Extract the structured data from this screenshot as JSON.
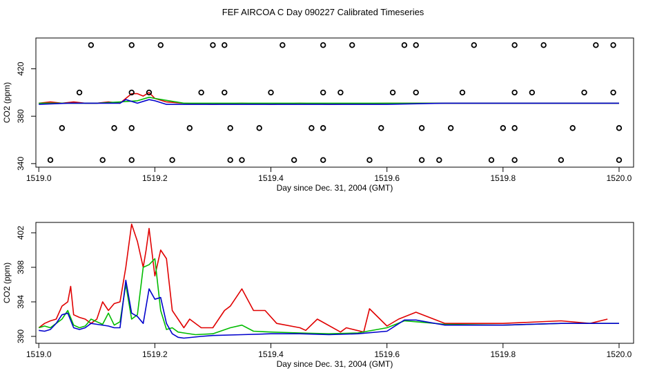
{
  "title": "FEF AIRCOA C  Day 090227  Calibrated Timeseries",
  "colors": {
    "red": "#e00000",
    "green": "#00bb00",
    "blue": "#0000cc",
    "marker": "#000000"
  },
  "chart_data": [
    {
      "type": "line",
      "xlabel": "Day since Dec. 31, 2004 (GMT)",
      "ylabel": "CO2 (ppm)",
      "xlim": [
        1518.995,
        1520.025
      ],
      "ylim": [
        337,
        446
      ],
      "xticks": [
        "1519.0",
        "1519.2",
        "1519.4",
        "1519.6",
        "1519.8",
        "1520.0"
      ],
      "yticks": [
        "340",
        "380",
        "420"
      ],
      "series": [
        {
          "color": "red",
          "x": [
            1519.0,
            1519.02,
            1519.04,
            1519.06,
            1519.08,
            1519.1,
            1519.12,
            1519.14,
            1519.15,
            1519.16,
            1519.17,
            1519.18,
            1519.19,
            1519.2,
            1519.22,
            1519.25,
            1519.3,
            1519.35,
            1519.4,
            1519.45,
            1519.5,
            1519.6,
            1519.7,
            1519.8,
            1519.9,
            1520.0
          ],
          "y": [
            391,
            392,
            391,
            392,
            391,
            391,
            392,
            391,
            395,
            399,
            399,
            397,
            400,
            395,
            392,
            391,
            390,
            391,
            390,
            391,
            390,
            391,
            391,
            391,
            391,
            391
          ]
        },
        {
          "color": "green",
          "x": [
            1519.0,
            1519.05,
            1519.1,
            1519.14,
            1519.17,
            1519.19,
            1519.2,
            1519.25,
            1519.3,
            1519.4,
            1519.5,
            1519.6,
            1519.7,
            1519.8,
            1519.9,
            1520.0
          ],
          "y": [
            391,
            391,
            391,
            392,
            393,
            396,
            395,
            391,
            391,
            391,
            391,
            391,
            391,
            391,
            391,
            391
          ]
        },
        {
          "color": "blue",
          "x": [
            1519.0,
            1519.05,
            1519.1,
            1519.14,
            1519.15,
            1519.17,
            1519.19,
            1519.2,
            1519.22,
            1519.3,
            1519.4,
            1519.5,
            1519.6,
            1519.7,
            1519.8,
            1519.9,
            1520.0
          ],
          "y": [
            390,
            391,
            391,
            391,
            394,
            391,
            394,
            393,
            390,
            390,
            390,
            390,
            390,
            391,
            391,
            391,
            391
          ]
        },
        {
          "type": "scatter",
          "color": "marker",
          "name": "",
          "x": [
            1519.09,
            1519.16,
            1519.21,
            1519.3,
            1519.32,
            1519.42,
            1519.49,
            1519.54,
            1519.63,
            1519.65,
            1519.75,
            1519.82,
            1519.87,
            1519.96,
            1519.99,
            1519.07,
            1519.16,
            1519.19,
            1519.28,
            1519.32,
            1519.4,
            1519.49,
            1519.52,
            1519.61,
            1519.65,
            1519.73,
            1519.82,
            1519.85,
            1519.94,
            1519.99,
            1519.04,
            1519.13,
            1519.16,
            1519.26,
            1519.33,
            1519.38,
            1519.47,
            1519.49,
            1519.59,
            1519.66,
            1519.71,
            1519.8,
            1519.82,
            1519.92,
            1520.0,
            1519.02,
            1519.11,
            1519.16,
            1519.23,
            1519.33,
            1519.35,
            1519.44,
            1519.49,
            1519.57,
            1519.66,
            1519.69,
            1519.78,
            1519.82,
            1519.9,
            1520.0
          ],
          "y": [
            440,
            440,
            440,
            440,
            440,
            440,
            440,
            440,
            440,
            440,
            440,
            440,
            440,
            440,
            440,
            400,
            400,
            400,
            400,
            400,
            400,
            400,
            400,
            400,
            400,
            400,
            400,
            400,
            400,
            400,
            370,
            370,
            370,
            370,
            370,
            370,
            370,
            370,
            370,
            370,
            370,
            370,
            370,
            370,
            370,
            343,
            343,
            343,
            343,
            343,
            343,
            343,
            343,
            343,
            343,
            343,
            343,
            343,
            343,
            343
          ]
        }
      ]
    },
    {
      "type": "line",
      "xlabel": "Day since Dec. 31, 2004 (GMT)",
      "ylabel": "CO2 (ppm)",
      "xlim": [
        1518.995,
        1520.025
      ],
      "ylim": [
        389.2,
        403.2
      ],
      "xticks": [
        "1519.0",
        "1519.2",
        "1519.4",
        "1519.6",
        "1519.8",
        "1520.0"
      ],
      "yticks": [
        "390",
        "394",
        "398",
        "402"
      ],
      "series": [
        {
          "color": "red",
          "x": [
            1519.0,
            1519.01,
            1519.02,
            1519.03,
            1519.04,
            1519.05,
            1519.055,
            1519.06,
            1519.07,
            1519.08,
            1519.09,
            1519.1,
            1519.11,
            1519.12,
            1519.13,
            1519.14,
            1519.15,
            1519.16,
            1519.17,
            1519.18,
            1519.185,
            1519.19,
            1519.2,
            1519.21,
            1519.22,
            1519.23,
            1519.24,
            1519.25,
            1519.26,
            1519.28,
            1519.3,
            1519.32,
            1519.33,
            1519.35,
            1519.37,
            1519.39,
            1519.41,
            1519.45,
            1519.46,
            1519.48,
            1519.52,
            1519.53,
            1519.56,
            1519.57,
            1519.6,
            1519.62,
            1519.65,
            1519.7,
            1519.8,
            1519.9,
            1519.95,
            1519.98
          ],
          "y": [
            391,
            391.5,
            391.8,
            392,
            393.5,
            394,
            395.8,
            392.5,
            392.2,
            392,
            391.5,
            392,
            394,
            393,
            393.8,
            394,
            398,
            403,
            401,
            398,
            400,
            402.5,
            397,
            400,
            399,
            393,
            392,
            391,
            392,
            391,
            391,
            393,
            393.5,
            395.5,
            393,
            393,
            391.5,
            391,
            390.7,
            392,
            390.5,
            391,
            390.5,
            393.2,
            391.2,
            392,
            392.8,
            391.5,
            391.5,
            391.8,
            391.5,
            392
          ]
        },
        {
          "color": "green",
          "x": [
            1519.0,
            1519.01,
            1519.02,
            1519.03,
            1519.04,
            1519.05,
            1519.06,
            1519.07,
            1519.08,
            1519.09,
            1519.1,
            1519.11,
            1519.12,
            1519.13,
            1519.14,
            1519.15,
            1519.16,
            1519.17,
            1519.18,
            1519.19,
            1519.2,
            1519.21,
            1519.22,
            1519.23,
            1519.24,
            1519.25,
            1519.27,
            1519.3,
            1519.33,
            1519.35,
            1519.37,
            1519.4,
            1519.45,
            1519.5,
            1519.55,
            1519.6,
            1519.63,
            1519.65,
            1519.7,
            1519.8,
            1519.9,
            1519.95,
            1520.0
          ],
          "y": [
            391,
            391.2,
            391,
            391.5,
            392,
            393,
            391.3,
            391,
            391.2,
            392,
            391.7,
            391.4,
            392.7,
            391.3,
            391.7,
            396,
            392,
            392.5,
            398,
            398.3,
            399,
            393,
            390.8,
            391,
            390.5,
            390.4,
            390.2,
            390.3,
            391,
            391.3,
            390.6,
            390.5,
            390.4,
            390.3,
            390.4,
            391,
            391.8,
            391.7,
            391.4,
            391.3,
            391.5,
            391.5,
            391.5
          ]
        },
        {
          "color": "blue",
          "x": [
            1519.0,
            1519.01,
            1519.02,
            1519.03,
            1519.04,
            1519.05,
            1519.06,
            1519.07,
            1519.08,
            1519.09,
            1519.1,
            1519.12,
            1519.13,
            1519.14,
            1519.15,
            1519.16,
            1519.17,
            1519.18,
            1519.19,
            1519.2,
            1519.21,
            1519.22,
            1519.23,
            1519.24,
            1519.25,
            1519.28,
            1519.3,
            1519.35,
            1519.4,
            1519.45,
            1519.5,
            1519.55,
            1519.6,
            1519.63,
            1519.65,
            1519.7,
            1519.8,
            1519.9,
            1519.95,
            1520.0
          ],
          "y": [
            390.7,
            390.6,
            390.8,
            391.5,
            392.5,
            392.7,
            391,
            390.8,
            391,
            391.5,
            391.4,
            391.2,
            391,
            391,
            396.5,
            392.7,
            392.3,
            391.5,
            395.5,
            394.3,
            394.5,
            391.5,
            390.3,
            389.9,
            389.8,
            390,
            390.1,
            390.2,
            390.3,
            390.3,
            390.2,
            390.3,
            390.6,
            391.9,
            391.9,
            391.3,
            391.3,
            391.5,
            391.5,
            391.5
          ]
        }
      ]
    }
  ]
}
